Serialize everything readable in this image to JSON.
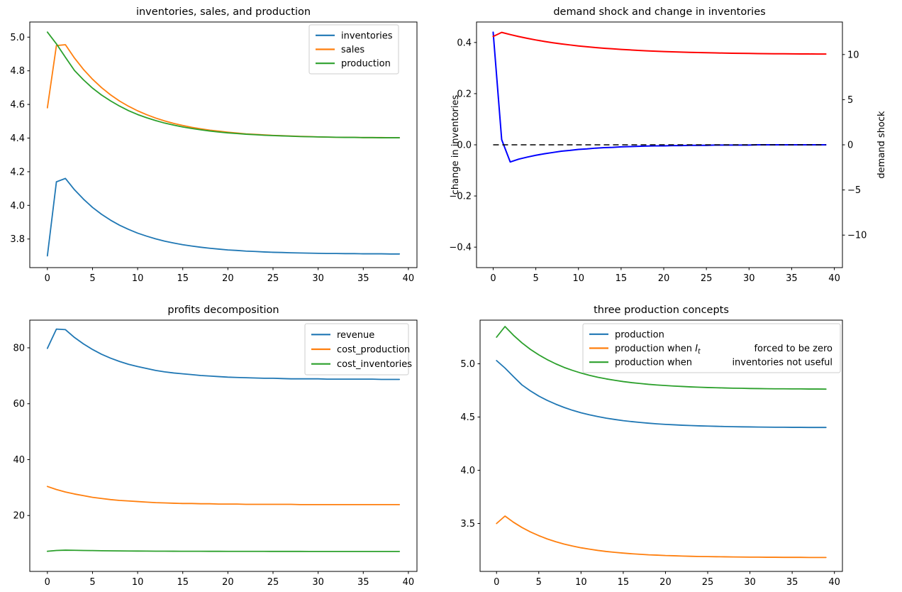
{
  "figure": {
    "background": "#ffffff"
  },
  "colors": {
    "mpl_blue": "#1f77b4",
    "mpl_orange": "#ff7f0e",
    "mpl_green": "#2ca02c",
    "pure_blue": "#0000ff",
    "pure_red": "#ff0000",
    "black": "#000000",
    "legend_frame": "#cccccc"
  },
  "chart_data": [
    {
      "id": "inventories-sales-production",
      "type": "line",
      "title": "inventories, sales, and production",
      "x": "0..39 (time periods)",
      "xlim": [
        -1.95,
        40.95
      ],
      "x_ticks": [
        0,
        5,
        10,
        15,
        20,
        25,
        30,
        35,
        40
      ],
      "grid": false,
      "left_axis": {
        "ylim": [
          3.63,
          5.09
        ],
        "ticks": [
          3.8,
          4.0,
          4.2,
          4.4,
          4.6,
          4.8,
          5.0
        ],
        "tick_labels": [
          "3.8",
          "4.0",
          "4.2",
          "4.4",
          "4.6",
          "4.8",
          "5.0"
        ]
      },
      "legend": {
        "position": "upper right",
        "items": [
          {
            "label": "inventories",
            "color": "#1f77b4"
          },
          {
            "label": "sales",
            "color": "#ff7f0e"
          },
          {
            "label": "production",
            "color": "#2ca02c"
          }
        ]
      },
      "series": [
        {
          "name": "inventories",
          "color": "#1f77b4",
          "width": 1.8,
          "axis": "left",
          "values": [
            3.7,
            4.14,
            4.16,
            4.093,
            4.037,
            3.988,
            3.947,
            3.912,
            3.882,
            3.857,
            3.835,
            3.817,
            3.801,
            3.787,
            3.776,
            3.766,
            3.758,
            3.751,
            3.745,
            3.74,
            3.735,
            3.732,
            3.728,
            3.726,
            3.723,
            3.721,
            3.72,
            3.718,
            3.717,
            3.716,
            3.715,
            3.714,
            3.714,
            3.713,
            3.713,
            3.712,
            3.712,
            3.712,
            3.711,
            3.711
          ]
        },
        {
          "name": "sales",
          "color": "#ff7f0e",
          "width": 1.8,
          "axis": "left",
          "values": [
            4.58,
            4.95,
            4.955,
            4.876,
            4.808,
            4.75,
            4.7,
            4.657,
            4.62,
            4.589,
            4.562,
            4.539,
            4.519,
            4.502,
            4.487,
            4.475,
            4.464,
            4.455,
            4.447,
            4.441,
            4.435,
            4.43,
            4.425,
            4.422,
            4.419,
            4.416,
            4.414,
            4.412,
            4.41,
            4.409,
            4.407,
            4.406,
            4.405,
            4.405,
            4.404,
            4.403,
            4.403,
            4.403,
            4.402,
            4.402
          ]
        },
        {
          "name": "production",
          "color": "#2ca02c",
          "width": 1.8,
          "axis": "left",
          "values": [
            5.03,
            4.96,
            4.88,
            4.802,
            4.746,
            4.697,
            4.656,
            4.621,
            4.59,
            4.563,
            4.54,
            4.521,
            4.504,
            4.489,
            4.477,
            4.466,
            4.457,
            4.449,
            4.442,
            4.436,
            4.431,
            4.427,
            4.423,
            4.42,
            4.417,
            4.415,
            4.413,
            4.411,
            4.409,
            4.408,
            4.407,
            4.406,
            4.405,
            4.404,
            4.404,
            4.403,
            4.403,
            4.402,
            4.402,
            4.402
          ]
        }
      ]
    },
    {
      "id": "demand-shock-and-change-in-inventories",
      "type": "line",
      "title": "demand shock and change in inventories",
      "x": "0..39 (time periods)",
      "xlim": [
        -1.95,
        40.95
      ],
      "x_ticks": [
        0,
        5,
        10,
        15,
        20,
        25,
        30,
        35,
        40
      ],
      "grid": false,
      "left_axis": {
        "label": "change in inventories",
        "label_color": "#0000ff",
        "ylim": [
          -0.48,
          0.48
        ],
        "ticks": [
          -0.4,
          -0.2,
          0.0,
          0.2,
          0.4
        ],
        "tick_labels": [
          "−0.4",
          "−0.2",
          "0.0",
          "0.2",
          "0.4"
        ]
      },
      "right_axis": {
        "label": "demand shock",
        "label_color": "#ff0000",
        "ylim": [
          -13.6,
          13.6
        ],
        "ticks": [
          -10,
          -5,
          0,
          5,
          10
        ],
        "tick_labels": [
          "−10",
          "−5",
          "0",
          "5",
          "10"
        ]
      },
      "hlines": [
        {
          "y": 0,
          "axis": "left",
          "color": "#000000",
          "dash": "8 5",
          "width": 1.6
        }
      ],
      "series": [
        {
          "name": "change in inventories",
          "color": "#0000ff",
          "width": 2,
          "axis": "left",
          "values": [
            0.44,
            0.02,
            -0.067,
            -0.056,
            -0.048,
            -0.041,
            -0.035,
            -0.03,
            -0.025,
            -0.022,
            -0.018,
            -0.016,
            -0.013,
            -0.011,
            -0.01,
            -0.008,
            -0.007,
            -0.006,
            -0.005,
            -0.004,
            -0.004,
            -0.003,
            -0.003,
            -0.002,
            -0.002,
            -0.002,
            -0.001,
            -0.001,
            -0.001,
            -0.001,
            -0.001,
            0,
            0,
            0,
            0,
            0,
            0,
            0,
            0,
            0
          ]
        },
        {
          "name": "demand shock",
          "color": "#ff0000",
          "width": 2,
          "axis": "right",
          "values": [
            12.0,
            12.45,
            12.21,
            11.99,
            11.79,
            11.61,
            11.45,
            11.3,
            11.17,
            11.06,
            10.95,
            10.86,
            10.77,
            10.69,
            10.63,
            10.56,
            10.51,
            10.46,
            10.41,
            10.37,
            10.33,
            10.3,
            10.27,
            10.24,
            10.22,
            10.2,
            10.18,
            10.16,
            10.14,
            10.13,
            10.12,
            10.1,
            10.09,
            10.08,
            10.08,
            10.07,
            10.06,
            10.06,
            10.05,
            10.05
          ]
        }
      ]
    },
    {
      "id": "profits-decomposition",
      "type": "line",
      "title": "profits decomposition",
      "x": "0..39 (time periods)",
      "xlim": [
        -1.95,
        40.95
      ],
      "x_ticks": [
        0,
        5,
        10,
        15,
        20,
        25,
        30,
        35,
        40
      ],
      "grid": false,
      "left_axis": {
        "ylim": [
          0.0,
          89.9
        ],
        "ticks": [
          20,
          40,
          60,
          80
        ],
        "tick_labels": [
          "20",
          "40",
          "60",
          "80"
        ]
      },
      "legend": {
        "position": "upper right",
        "items": [
          {
            "label": "revenue",
            "color": "#1f77b4"
          },
          {
            "label": "cost_production",
            "color": "#ff7f0e"
          },
          {
            "label": "cost_inventories",
            "color": "#2ca02c"
          }
        ]
      },
      "series": [
        {
          "name": "revenue",
          "color": "#1f77b4",
          "width": 1.8,
          "axis": "left",
          "values": [
            79.8,
            86.7,
            86.5,
            83.7,
            81.4,
            79.4,
            77.7,
            76.3,
            75.1,
            74.1,
            73.3,
            72.6,
            71.9,
            71.4,
            71.0,
            70.7,
            70.4,
            70.1,
            69.9,
            69.7,
            69.5,
            69.4,
            69.3,
            69.2,
            69.1,
            69.1,
            69.0,
            68.9,
            68.9,
            68.9,
            68.9,
            68.8,
            68.8,
            68.8,
            68.8,
            68.8,
            68.8,
            68.7,
            68.7,
            68.7
          ]
        },
        {
          "name": "cost_production",
          "color": "#ff7f0e",
          "width": 1.8,
          "axis": "left",
          "values": [
            30.4,
            29.3,
            28.4,
            27.7,
            27.1,
            26.5,
            26.1,
            25.7,
            25.4,
            25.2,
            25.0,
            24.8,
            24.6,
            24.5,
            24.4,
            24.3,
            24.3,
            24.2,
            24.2,
            24.1,
            24.1,
            24.1,
            24.0,
            24.0,
            24.0,
            24.0,
            24.0,
            24.0,
            23.9,
            23.9,
            23.9,
            23.9,
            23.9,
            23.9,
            23.9,
            23.9,
            23.9,
            23.9,
            23.9,
            23.9
          ]
        },
        {
          "name": "cost_inventories",
          "color": "#2ca02c",
          "width": 1.8,
          "axis": "left",
          "values": [
            7.2,
            7.5,
            7.6,
            7.55,
            7.5,
            7.45,
            7.4,
            7.37,
            7.33,
            7.3,
            7.28,
            7.26,
            7.24,
            7.23,
            7.22,
            7.21,
            7.2,
            7.2,
            7.19,
            7.19,
            7.18,
            7.18,
            7.17,
            7.17,
            7.17,
            7.16,
            7.16,
            7.16,
            7.16,
            7.15,
            7.15,
            7.15,
            7.15,
            7.15,
            7.15,
            7.15,
            7.15,
            7.15,
            7.15,
            7.15
          ]
        }
      ]
    },
    {
      "id": "three-production-concepts",
      "type": "line",
      "title": "three production concepts",
      "x": "0..39 (time periods)",
      "xlim": [
        -1.95,
        40.95
      ],
      "x_ticks": [
        0,
        5,
        10,
        15,
        20,
        25,
        30,
        35,
        40
      ],
      "grid": false,
      "left_axis": {
        "ylim": [
          3.05,
          5.41
        ],
        "ticks": [
          3.5,
          4.0,
          4.5,
          5.0
        ],
        "tick_labels": [
          "3.5",
          "4.0",
          "4.5",
          "5.0"
        ]
      },
      "legend": {
        "position": "upper center-right",
        "items": [
          {
            "label": "production",
            "color": "#1f77b4"
          },
          {
            "label_pre": "production when  ",
            "math": {
              "base": "I",
              "sub": "t"
            },
            "label_end": "forced to be zero",
            "color": "#ff7f0e"
          },
          {
            "label_pre": "production when",
            "label_end": "inventories not useful",
            "color": "#2ca02c"
          }
        ]
      },
      "series": [
        {
          "name": "production",
          "color": "#1f77b4",
          "width": 1.8,
          "axis": "left",
          "values": [
            5.03,
            4.96,
            4.88,
            4.802,
            4.746,
            4.697,
            4.656,
            4.621,
            4.59,
            4.563,
            4.54,
            4.521,
            4.504,
            4.489,
            4.477,
            4.466,
            4.457,
            4.449,
            4.442,
            4.436,
            4.431,
            4.427,
            4.423,
            4.42,
            4.417,
            4.415,
            4.413,
            4.411,
            4.409,
            4.408,
            4.407,
            4.406,
            4.405,
            4.404,
            4.404,
            4.403,
            4.403,
            4.402,
            4.402,
            4.402
          ]
        },
        {
          "name": "production when I_t forced to be zero",
          "color": "#ff7f0e",
          "width": 1.8,
          "axis": "left",
          "values": [
            3.5,
            3.57,
            3.512,
            3.463,
            3.421,
            3.386,
            3.355,
            3.329,
            3.307,
            3.288,
            3.272,
            3.259,
            3.247,
            3.237,
            3.229,
            3.222,
            3.216,
            3.211,
            3.206,
            3.203,
            3.199,
            3.197,
            3.194,
            3.192,
            3.19,
            3.189,
            3.188,
            3.187,
            3.186,
            3.185,
            3.184,
            3.184,
            3.183,
            3.183,
            3.182,
            3.182,
            3.182,
            3.181,
            3.181,
            3.181
          ]
        },
        {
          "name": "production when inventories not useful",
          "color": "#2ca02c",
          "width": 1.8,
          "axis": "left",
          "values": [
            5.25,
            5.35,
            5.268,
            5.197,
            5.136,
            5.084,
            5.039,
            5.0,
            4.966,
            4.938,
            4.913,
            4.892,
            4.873,
            4.858,
            4.845,
            4.833,
            4.823,
            4.815,
            4.807,
            4.801,
            4.796,
            4.791,
            4.787,
            4.783,
            4.78,
            4.777,
            4.775,
            4.773,
            4.771,
            4.77,
            4.768,
            4.767,
            4.766,
            4.765,
            4.765,
            4.764,
            4.764,
            4.763,
            4.763,
            4.762
          ]
        }
      ]
    }
  ]
}
